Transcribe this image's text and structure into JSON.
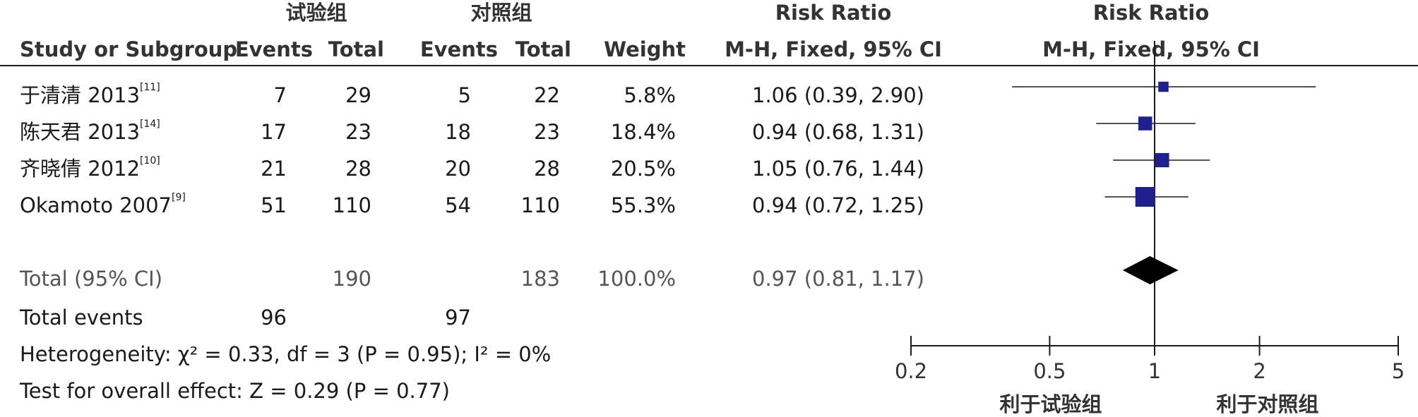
{
  "chart_data": {
    "type": "forest",
    "headers": {
      "group_exp": "试验组",
      "group_ctrl": "对照组",
      "study": "Study or Subgroup",
      "events": "Events",
      "total": "Total",
      "weight": "Weight",
      "rr_title": "Risk Ratio",
      "rr_method": "M-H, Fixed, 95% CI",
      "plot_title": "Risk Ratio",
      "plot_method": "M-H, Fixed, 95% CI"
    },
    "studies": [
      {
        "name": "于清清 2013",
        "ref": "[11]",
        "exp_events": "7",
        "exp_total": "29",
        "ctrl_events": "5",
        "ctrl_total": "22",
        "weight": "5.8%",
        "ci_text": "1.06 (0.39, 2.90)",
        "rr": 1.06,
        "lo": 0.39,
        "hi": 2.9,
        "w": 5.8
      },
      {
        "name": "陈天君 2013",
        "ref": "[14]",
        "exp_events": "17",
        "exp_total": "23",
        "ctrl_events": "18",
        "ctrl_total": "23",
        "weight": "18.4%",
        "ci_text": "0.94 (0.68, 1.31)",
        "rr": 0.94,
        "lo": 0.68,
        "hi": 1.31,
        "w": 18.4
      },
      {
        "name": "齐晓倩 2012",
        "ref": "[10]",
        "exp_events": "21",
        "exp_total": "28",
        "ctrl_events": "20",
        "ctrl_total": "28",
        "weight": "20.5%",
        "ci_text": "1.05 (0.76, 1.44)",
        "rr": 1.05,
        "lo": 0.76,
        "hi": 1.44,
        "w": 20.5
      },
      {
        "name": "Okamoto 2007",
        "ref": "[9]",
        "exp_events": "51",
        "exp_total": "110",
        "ctrl_events": "54",
        "ctrl_total": "110",
        "weight": "55.3%",
        "ci_text": "0.94 (0.72, 1.25)",
        "rr": 0.94,
        "lo": 0.72,
        "hi": 1.25,
        "w": 55.3
      }
    ],
    "total": {
      "label": "Total (95% CI)",
      "exp_total": "190",
      "ctrl_total": "183",
      "weight": "100.0%",
      "ci_text": "0.97 (0.81, 1.17)",
      "rr": 0.97,
      "lo": 0.81,
      "hi": 1.17
    },
    "total_events": {
      "label": "Total events",
      "exp": "96",
      "ctrl": "97"
    },
    "heterogeneity": "Heterogeneity: χ² = 0.33, df = 3 (P = 0.95); I² = 0%",
    "overall_effect": "Test for overall effect: Z = 0.29 (P = 0.77)",
    "axis": {
      "scale": "log",
      "min": 0.2,
      "max": 5,
      "ticks": [
        "0.2",
        "0.5",
        "1",
        "2",
        "5"
      ],
      "tick_values": [
        0.2,
        0.5,
        1,
        2,
        5
      ]
    },
    "favours_left": "利于试验组",
    "favours_right": "利于对照组",
    "colors": {
      "study_marker": "#1f1f8f",
      "diamond": "#000000",
      "line": "#1a1a1a"
    }
  }
}
